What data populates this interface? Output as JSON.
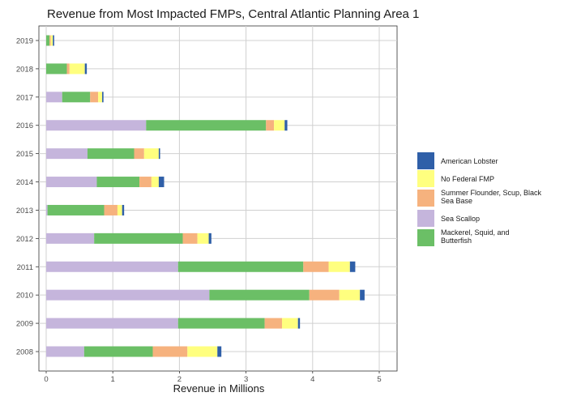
{
  "chart_data": {
    "type": "bar",
    "orientation": "horizontal",
    "stacked": true,
    "title": "Revenue from Most Impacted FMPs, Central Atlantic Planning Area 1",
    "xlabel": "Revenue in Millions",
    "ylabel": "",
    "xlim": [
      0,
      5.3
    ],
    "xticks": [
      0,
      1,
      2,
      3,
      4,
      5
    ],
    "grid": true,
    "legend_position": "right",
    "categories": [
      "2008",
      "2009",
      "2010",
      "2011",
      "2012",
      "2013",
      "2014",
      "2015",
      "2016",
      "2017",
      "2018",
      "2019"
    ],
    "series": [
      {
        "name": "Sea Scallop",
        "color": "#c5b5dc",
        "values": [
          0.57,
          1.98,
          2.45,
          1.98,
          0.72,
          0.02,
          0.76,
          0.62,
          1.5,
          0.24,
          0.0,
          0.0
        ]
      },
      {
        "name": "Mackerel, Squid, and Butterfish",
        "color": "#6bbf66",
        "values": [
          1.03,
          1.3,
          1.5,
          1.88,
          1.33,
          0.85,
          0.64,
          0.7,
          1.8,
          0.42,
          0.31,
          0.05
        ]
      },
      {
        "name": "Summer Flounder, Scup, Black Sea Base",
        "color": "#f6b27e",
        "values": [
          0.52,
          0.26,
          0.45,
          0.38,
          0.22,
          0.2,
          0.18,
          0.15,
          0.12,
          0.12,
          0.04,
          0.02
        ]
      },
      {
        "name": "No Federal FMP",
        "color": "#ffff7f",
        "values": [
          0.45,
          0.24,
          0.31,
          0.32,
          0.17,
          0.07,
          0.11,
          0.22,
          0.16,
          0.06,
          0.23,
          0.03
        ]
      },
      {
        "name": "American Lobster",
        "color": "#2f5fa8",
        "values": [
          0.06,
          0.03,
          0.07,
          0.08,
          0.04,
          0.03,
          0.08,
          0.02,
          0.04,
          0.02,
          0.03,
          0.02
        ]
      }
    ],
    "legend_order": [
      "American Lobster",
      "No Federal FMP",
      "Summer Flounder, Scup, Black Sea Base",
      "Sea Scallop",
      "Mackerel, Squid, and Butterfish"
    ],
    "legend_lines": {
      "American Lobster": [
        "American Lobster"
      ],
      "No Federal FMP": [
        "No Federal FMP"
      ],
      "Summer Flounder, Scup, Black Sea Base": [
        "Summer Flounder, Scup, Black",
        "Sea Base"
      ],
      "Sea Scallop": [
        "Sea Scallop"
      ],
      "Mackerel, Squid, and Butterfish": [
        "Mackerel, Squid, and",
        "Butterfish"
      ]
    }
  }
}
